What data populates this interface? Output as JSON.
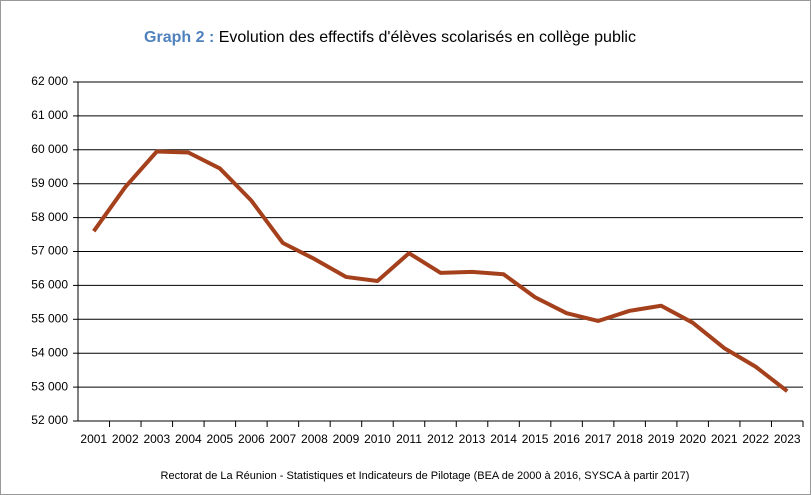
{
  "chart_data": {
    "type": "line",
    "title_label": "Graph 2 :",
    "title": "Evolution des effectifs d'élèves scolarisés en collège public",
    "source": "Rectorat de La Réunion - Statistiques et Indicateurs de Pilotage (BEA de 2000 à 2016, SYSCA à partir 2017)",
    "categories": [
      "2001",
      "2002",
      "2003",
      "2004",
      "2005",
      "2006",
      "2007",
      "2008",
      "2009",
      "2010",
      "2011",
      "2012",
      "2013",
      "2014",
      "2015",
      "2016",
      "2017",
      "2018",
      "2019",
      "2020",
      "2021",
      "2022",
      "2023"
    ],
    "values": [
      57600,
      58900,
      59950,
      59920,
      59450,
      58500,
      57250,
      56780,
      56250,
      56130,
      56950,
      56370,
      56400,
      56330,
      55650,
      55180,
      54950,
      55250,
      55400,
      54900,
      54150,
      53600,
      52880
    ],
    "color": "#a5401c",
    "ylim": [
      52000,
      62000
    ],
    "yticks": [
      {
        "value": 52000,
        "label": "52 000"
      },
      {
        "value": 53000,
        "label": "53 000"
      },
      {
        "value": 54000,
        "label": "54 000"
      },
      {
        "value": 55000,
        "label": "55 000"
      },
      {
        "value": 56000,
        "label": "56 000"
      },
      {
        "value": 57000,
        "label": "57 000"
      },
      {
        "value": 58000,
        "label": "58 000"
      },
      {
        "value": 59000,
        "label": "59 000"
      },
      {
        "value": 60000,
        "label": "60 000"
      },
      {
        "value": 61000,
        "label": "61 000"
      },
      {
        "value": 62000,
        "label": "62 000"
      }
    ],
    "grid": true
  }
}
